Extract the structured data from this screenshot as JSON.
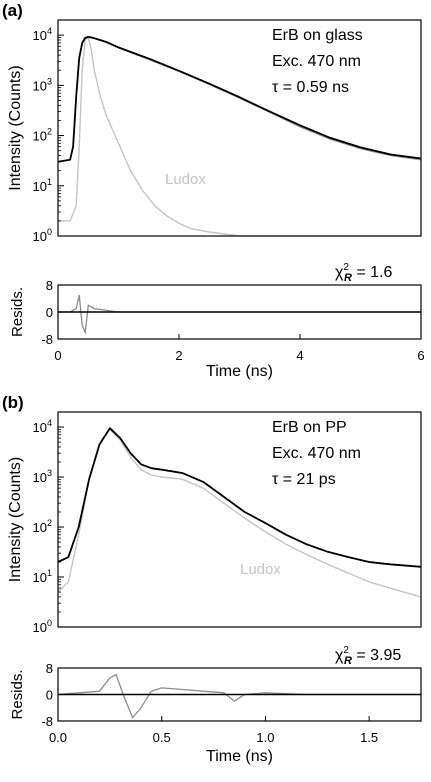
{
  "panels": [
    {
      "label": "(a)",
      "annotations": [
        "ErB on glass",
        "Exc. 470 nm",
        "τ = 0.59 ns"
      ],
      "chi_label": "χ",
      "chi_sub": "R",
      "chi_sup": "2",
      "chi_value": "= 1.6"
    },
    {
      "label": "(b)",
      "annotations": [
        "ErB on PP",
        "Exc. 470 nm",
        "τ = 21 ps"
      ],
      "chi_label": "χ",
      "chi_sub": "R",
      "chi_sup": "2",
      "chi_value": "= 3.95"
    }
  ],
  "colors": {
    "fit": "#000000",
    "data": "#8c8c8c",
    "ludox": "#c4c4c4",
    "axis": "#000000"
  },
  "chart_data": [
    {
      "type": "line",
      "panel": "(a)",
      "role": "decay",
      "xlabel": "",
      "ylabel": "Intensity (Counts)",
      "ylog": true,
      "xlim": [
        0,
        6
      ],
      "ylim": [
        1,
        20000
      ],
      "ytick_labels": [
        {
          "base": "10",
          "exp": "0",
          "value": 1
        },
        {
          "base": "10",
          "exp": "1",
          "value": 10
        },
        {
          "base": "10",
          "exp": "2",
          "value": 100
        },
        {
          "base": "10",
          "exp": "3",
          "value": 1000
        },
        {
          "base": "10",
          "exp": "4",
          "value": 10000
        }
      ],
      "legend_label": "Ludox",
      "series": [
        {
          "role": "data",
          "x": [
            0,
            0.2,
            0.25,
            0.3,
            0.35,
            0.4,
            0.45,
            0.5,
            0.55,
            0.6,
            0.8,
            1.0,
            1.5,
            2.0,
            2.5,
            3.0,
            3.5,
            4.0,
            4.5,
            5.0,
            5.5,
            6.0
          ],
          "y": [
            30,
            33,
            60,
            600,
            3500,
            7000,
            8800,
            9000,
            8900,
            8600,
            7200,
            5600,
            3300,
            1900,
            1050,
            560,
            290,
            150,
            85,
            55,
            40,
            33
          ]
        },
        {
          "role": "fit",
          "x": [
            0,
            0.2,
            0.25,
            0.3,
            0.35,
            0.4,
            0.45,
            0.5,
            0.55,
            0.6,
            0.8,
            1.0,
            1.5,
            2.0,
            2.5,
            3.0,
            3.5,
            4.0,
            4.5,
            5.0,
            5.5,
            6.0
          ],
          "y": [
            30,
            33,
            60,
            600,
            3500,
            7000,
            8800,
            9200,
            9000,
            8700,
            7300,
            5700,
            3400,
            1950,
            1080,
            580,
            300,
            160,
            90,
            58,
            42,
            35
          ]
        },
        {
          "name": "Ludox",
          "role": "ludox",
          "x": [
            0,
            0.2,
            0.3,
            0.35,
            0.4,
            0.45,
            0.5,
            0.55,
            0.6,
            0.7,
            0.8,
            1.0,
            1.2,
            1.4,
            1.6,
            1.8,
            2.0,
            2.2,
            2.5,
            3.0,
            4.0,
            5.0,
            6.0
          ],
          "y": [
            2,
            2,
            4,
            60,
            2000,
            8000,
            9000,
            5000,
            2000,
            600,
            250,
            70,
            20,
            8,
            4,
            2.5,
            1.8,
            1.4,
            1.2,
            1,
            1,
            1,
            1
          ]
        }
      ]
    },
    {
      "type": "line",
      "panel": "(a)",
      "role": "residuals",
      "xlabel": "Time (ns)",
      "ylabel": "Resids.",
      "xlim": [
        0,
        6
      ],
      "ylim": [
        -8,
        8
      ],
      "xticks": [
        0,
        2,
        4,
        6
      ],
      "yticks": [
        -8,
        0,
        8
      ],
      "series": [
        {
          "role": "residuals",
          "x": [
            0,
            0.2,
            0.3,
            0.35,
            0.4,
            0.45,
            0.5,
            0.6,
            1.0,
            2.0,
            3.0,
            4.0,
            5.0,
            6.0
          ],
          "y": [
            0,
            0,
            1,
            5,
            -4,
            -6,
            2,
            1,
            0,
            0,
            0,
            0,
            0,
            0
          ]
        }
      ]
    },
    {
      "type": "line",
      "panel": "(b)",
      "role": "decay",
      "xlabel": "",
      "ylabel": "Intensity (Counts)",
      "ylog": true,
      "xlim": [
        0,
        1.75
      ],
      "ylim": [
        1,
        20000
      ],
      "ytick_labels": [
        {
          "base": "10",
          "exp": "0",
          "value": 1
        },
        {
          "base": "10",
          "exp": "1",
          "value": 10
        },
        {
          "base": "10",
          "exp": "2",
          "value": 100
        },
        {
          "base": "10",
          "exp": "3",
          "value": 1000
        },
        {
          "base": "10",
          "exp": "4",
          "value": 10000
        }
      ],
      "legend_label": "Ludox",
      "series": [
        {
          "role": "data",
          "x": [
            0,
            0.05,
            0.1,
            0.15,
            0.2,
            0.25,
            0.3,
            0.35,
            0.4,
            0.45,
            0.5,
            0.55,
            0.6,
            0.7,
            0.8,
            0.9,
            1.0,
            1.1,
            1.2,
            1.3,
            1.4,
            1.5,
            1.6,
            1.75
          ],
          "y": [
            20,
            25,
            100,
            900,
            4500,
            9500,
            6000,
            3000,
            1800,
            1500,
            1400,
            1300,
            1200,
            800,
            400,
            200,
            120,
            70,
            45,
            32,
            25,
            20,
            18,
            16
          ]
        },
        {
          "role": "fit",
          "x": [
            0,
            0.05,
            0.1,
            0.15,
            0.2,
            0.25,
            0.3,
            0.35,
            0.4,
            0.45,
            0.5,
            0.55,
            0.6,
            0.7,
            0.8,
            0.9,
            1.0,
            1.1,
            1.2,
            1.3,
            1.4,
            1.5,
            1.6,
            1.75
          ],
          "y": [
            20,
            25,
            100,
            900,
            4500,
            9500,
            6000,
            3000,
            1800,
            1500,
            1400,
            1300,
            1200,
            800,
            400,
            200,
            120,
            70,
            45,
            32,
            25,
            20,
            18,
            16
          ]
        },
        {
          "name": "Ludox",
          "role": "ludox",
          "x": [
            0,
            0.05,
            0.1,
            0.15,
            0.2,
            0.25,
            0.3,
            0.35,
            0.4,
            0.45,
            0.5,
            0.55,
            0.6,
            0.7,
            0.8,
            0.9,
            1.0,
            1.1,
            1.2,
            1.3,
            1.4,
            1.5,
            1.6,
            1.75
          ],
          "y": [
            5,
            8,
            70,
            900,
            4500,
            9000,
            5500,
            2500,
            1400,
            1100,
            1000,
            950,
            900,
            600,
            300,
            150,
            80,
            45,
            28,
            18,
            12,
            8,
            6,
            4
          ]
        }
      ]
    },
    {
      "type": "line",
      "panel": "(b)",
      "role": "residuals",
      "xlabel": "Time (ns)",
      "ylabel": "Resids.",
      "xlim": [
        0,
        1.75
      ],
      "ylim": [
        -8,
        8
      ],
      "xticks": [
        0.0,
        0.5,
        1.0,
        1.5
      ],
      "xtick_labels": [
        "0.0",
        "0.5",
        "1.0",
        "1.5"
      ],
      "yticks": [
        -8,
        0,
        8
      ],
      "series": [
        {
          "role": "residuals",
          "x": [
            0,
            0.1,
            0.2,
            0.25,
            0.28,
            0.32,
            0.36,
            0.4,
            0.45,
            0.5,
            0.6,
            0.7,
            0.8,
            0.85,
            0.9,
            1.0,
            1.2,
            1.4,
            1.6,
            1.75
          ],
          "y": [
            0,
            0.5,
            1,
            5,
            6,
            -1,
            -7,
            -4,
            1,
            2,
            1.5,
            1,
            0.5,
            -2,
            0,
            0.5,
            0,
            0,
            0,
            0
          ]
        }
      ]
    }
  ]
}
